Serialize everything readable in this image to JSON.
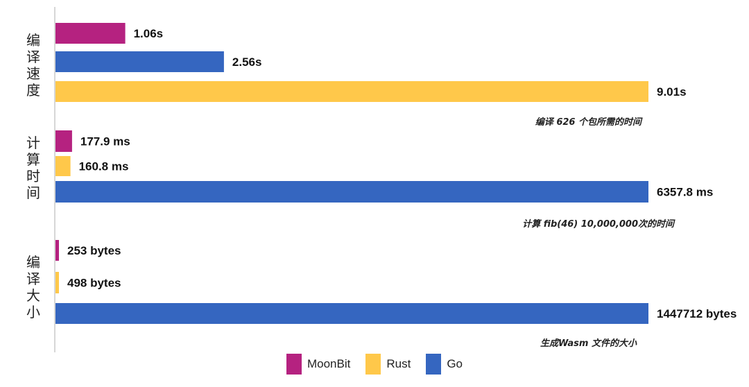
{
  "chart_data": {
    "type": "bar",
    "orientation": "horizontal",
    "colors": {
      "MoonBit": "#B52280",
      "Rust": "#FFC84A",
      "Go": "#3566C0"
    },
    "legend": {
      "position": "bottom-center",
      "entries": [
        "MoonBit",
        "Rust",
        "Go"
      ]
    },
    "panels": [
      {
        "title": "编译速度",
        "note": "编译 626 个包所需的时间",
        "bars": [
          {
            "series": "MoonBit",
            "value": 1.06,
            "label": "1.06s"
          },
          {
            "series": "Go",
            "value": 2.56,
            "label": "2.56s"
          },
          {
            "series": "Rust",
            "value": 9.01,
            "label": "9.01s"
          }
        ]
      },
      {
        "title": "计算时间",
        "note": "计算 fib(46) 10,000,000次的时间",
        "bars": [
          {
            "series": "MoonBit",
            "value": 177.9,
            "label": "177.9 ms"
          },
          {
            "series": "Rust",
            "value": 160.8,
            "label": "160.8 ms"
          },
          {
            "series": "Go",
            "value": 6357.8,
            "label": "6357.8 ms"
          }
        ]
      },
      {
        "title": "编译大小",
        "note": "生成Wasm 文件的大小",
        "bars": [
          {
            "series": "MoonBit",
            "value": 253,
            "label": "253 bytes"
          },
          {
            "series": "Rust",
            "value": 498,
            "label": "498 bytes"
          },
          {
            "series": "Go",
            "value": 1447712,
            "label": "1447712 bytes"
          }
        ]
      }
    ]
  }
}
